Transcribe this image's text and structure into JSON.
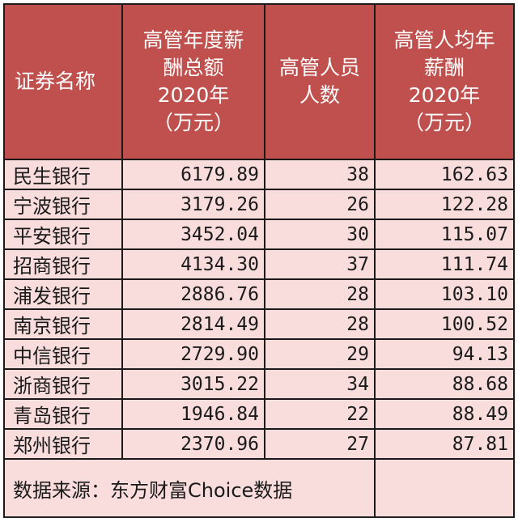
{
  "header": {
    "name": "证券名称",
    "total": [
      "高管年度薪",
      "酬总额",
      "2020年",
      "（万元）"
    ],
    "count": [
      "高管人员",
      "人数"
    ],
    "avg": [
      "高管人均年",
      "薪酬",
      "2020年",
      "（万元）"
    ]
  },
  "rows": [
    {
      "name": "民生银行",
      "total": "6179.89",
      "count": "38",
      "avg": "162.63"
    },
    {
      "name": "宁波银行",
      "total": "3179.26",
      "count": "26",
      "avg": "122.28"
    },
    {
      "name": "平安银行",
      "total": "3452.04",
      "count": "30",
      "avg": "115.07"
    },
    {
      "name": "招商银行",
      "total": "4134.30",
      "count": "37",
      "avg": "111.74"
    },
    {
      "name": "浦发银行",
      "total": "2886.76",
      "count": "28",
      "avg": "103.10"
    },
    {
      "name": "南京银行",
      "total": "2814.49",
      "count": "28",
      "avg": "100.52"
    },
    {
      "name": "中信银行",
      "total": "2729.90",
      "count": "29",
      "avg": "94.13"
    },
    {
      "name": "浙商银行",
      "total": "3015.22",
      "count": "34",
      "avg": "88.68"
    },
    {
      "name": "青岛银行",
      "total": "1946.84",
      "count": "22",
      "avg": "88.49"
    },
    {
      "name": "郑州银行",
      "total": "2370.96",
      "count": "27",
      "avg": "87.81"
    }
  ],
  "footer": {
    "source": "数据来源：东方财富Choice数据"
  },
  "colors": {
    "header_bg": "#c0504d",
    "row_bg": "#f9dcdc"
  }
}
